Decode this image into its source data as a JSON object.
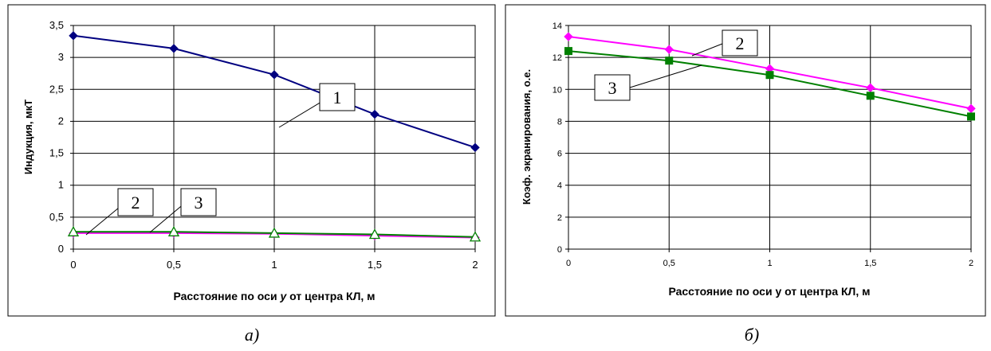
{
  "captions": {
    "left": "а)",
    "right": "б)"
  },
  "chart_data": [
    {
      "type": "line",
      "panel": "a",
      "xlabel_prefix": "Расстояние по оси ",
      "xlabel_var": "y",
      "xlabel_suffix": " от центра КЛ, м",
      "ylabel": "Индукция, мкТ",
      "x": [
        0,
        0.5,
        1,
        1.5,
        2
      ],
      "x_ticks": [
        "0",
        "0,5",
        "1",
        "1,5",
        "2"
      ],
      "xlim": [
        0,
        2
      ],
      "ylim": [
        0,
        3.5
      ],
      "y_ticks": [
        "0",
        "0,5",
        "1",
        "1,5",
        "2",
        "2,5",
        "3",
        "3,5"
      ],
      "grid": true,
      "series": [
        {
          "name": "1",
          "values": [
            3.34,
            3.14,
            2.73,
            2.11,
            1.59
          ],
          "color": "#000080",
          "marker": "diamond"
        },
        {
          "name": "2",
          "values": [
            0.25,
            0.25,
            0.24,
            0.21,
            0.18
          ],
          "color": "#ff00ff",
          "marker": "diamond"
        },
        {
          "name": "3",
          "values": [
            0.27,
            0.27,
            0.25,
            0.23,
            0.19
          ],
          "color": "#008000",
          "marker": "triangle-open"
        }
      ],
      "callouts": [
        "1",
        "2",
        "3"
      ]
    },
    {
      "type": "line",
      "panel": "b",
      "xlabel": "Расстояние по оси y от центра КЛ, м",
      "ylabel": "Коэф. экранирования, о.е.",
      "x": [
        0,
        0.5,
        1,
        1.5,
        2
      ],
      "x_ticks": [
        "0",
        "0,5",
        "1",
        "1,5",
        "2"
      ],
      "xlim": [
        0,
        2
      ],
      "ylim": [
        0,
        14
      ],
      "y_ticks": [
        "0",
        "2",
        "4",
        "6",
        "8",
        "10",
        "12",
        "14"
      ],
      "grid": true,
      "series": [
        {
          "name": "2",
          "values": [
            13.3,
            12.5,
            11.3,
            10.1,
            8.8
          ],
          "color": "#ff00ff",
          "marker": "diamond"
        },
        {
          "name": "3",
          "values": [
            12.4,
            11.8,
            10.9,
            9.6,
            8.3
          ],
          "color": "#008000",
          "marker": "square"
        }
      ],
      "callouts": [
        "2",
        "3"
      ]
    }
  ]
}
